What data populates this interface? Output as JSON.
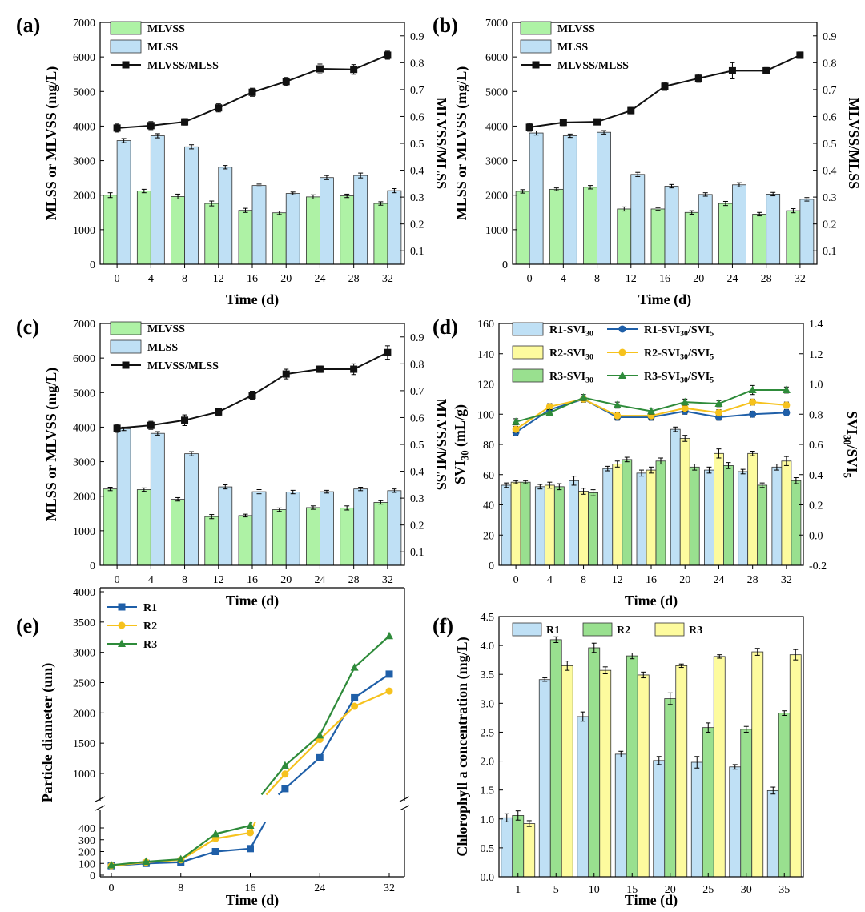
{
  "colors": {
    "mlvss": "#aef2a5",
    "mlss": "#bfe0f5",
    "ratio": "#111111",
    "r1": "#1f5fa8",
    "r2": "#f6c21d",
    "r3": "#2e8b3a",
    "r1_bar": "#bfe0f5",
    "r2_bar": "#fdfb9e",
    "r3_bar": "#99e08f",
    "edge": "#333333"
  },
  "chart_data": [
    {
      "panel_label": "(a)",
      "type": "bar",
      "categories": [
        "0",
        "4",
        "8",
        "12",
        "16",
        "20",
        "24",
        "28",
        "32"
      ],
      "xlabel": "Time (d)",
      "ylabel": "MLSS or MLVSS (mg/L)",
      "ylabel2": "MLVSS/MLSS",
      "ylim": [
        0,
        7000
      ],
      "y_ticks": [
        "0",
        "1000",
        "2000",
        "3000",
        "4000",
        "5000",
        "6000",
        "7000"
      ],
      "ylim2": [
        0.05,
        0.95
      ],
      "y2_ticks": [
        "0.1",
        "0.2",
        "0.3",
        "0.4",
        "0.5",
        "0.6",
        "0.7",
        "0.8",
        "0.9"
      ],
      "legend_position": "top-left",
      "series": [
        {
          "name": "MLVSS",
          "kind": "bar",
          "color": "mlvss",
          "values": [
            2000,
            2120,
            1960,
            1760,
            1560,
            1490,
            1950,
            1980,
            1760
          ],
          "err": [
            70,
            50,
            70,
            70,
            60,
            50,
            60,
            50,
            50
          ]
        },
        {
          "name": "MLSS",
          "kind": "bar",
          "color": "mlss",
          "values": [
            3580,
            3720,
            3400,
            2810,
            2280,
            2050,
            2510,
            2570,
            2130
          ],
          "err": [
            60,
            60,
            60,
            50,
            40,
            40,
            60,
            70,
            60
          ]
        },
        {
          "name": "MLVSS/MLSS",
          "kind": "line",
          "axis": "right",
          "marker": "square",
          "color": "ratio",
          "values": [
            0.557,
            0.566,
            0.58,
            0.632,
            0.69,
            0.73,
            0.777,
            0.775,
            0.828
          ],
          "err": [
            0.015,
            0.015,
            0.012,
            0.015,
            0.015,
            0.015,
            0.018,
            0.018,
            0.015
          ]
        }
      ]
    },
    {
      "panel_label": "(b)",
      "type": "bar",
      "categories": [
        "0",
        "4",
        "8",
        "12",
        "16",
        "20",
        "24",
        "28",
        "32"
      ],
      "xlabel": "Time (d)",
      "ylabel": "MLSS or MLVSS (mg/L)",
      "ylabel2": "MLVSS/MLSS",
      "ylim": [
        0,
        7000
      ],
      "y_ticks": [
        "0",
        "1000",
        "2000",
        "3000",
        "4000",
        "5000",
        "6000",
        "7000"
      ],
      "ylim2": [
        0.05,
        0.95
      ],
      "y2_ticks": [
        "0.1",
        "0.2",
        "0.3",
        "0.4",
        "0.5",
        "0.6",
        "0.7",
        "0.8",
        "0.9"
      ],
      "legend_position": "top-left",
      "series": [
        {
          "name": "MLVSS",
          "kind": "bar",
          "color": "mlvss",
          "values": [
            2110,
            2170,
            2230,
            1600,
            1600,
            1500,
            1760,
            1450,
            1550
          ],
          "err": [
            50,
            40,
            50,
            60,
            40,
            50,
            60,
            50,
            60
          ]
        },
        {
          "name": "MLSS",
          "kind": "bar",
          "color": "mlss",
          "values": [
            3800,
            3720,
            3820,
            2600,
            2260,
            2020,
            2300,
            2030,
            1880
          ],
          "err": [
            60,
            50,
            50,
            60,
            50,
            50,
            60,
            50,
            50
          ]
        },
        {
          "name": "MLVSS/MLSS",
          "kind": "line",
          "axis": "right",
          "marker": "square",
          "color": "ratio",
          "values": [
            0.56,
            0.578,
            0.58,
            0.622,
            0.712,
            0.742,
            0.77,
            0.77,
            0.828
          ],
          "err": [
            0.015,
            0.012,
            0.01,
            0.012,
            0.015,
            0.015,
            0.03,
            0.012,
            0.012
          ]
        }
      ]
    },
    {
      "panel_label": "(c)",
      "type": "bar",
      "categories": [
        "0",
        "4",
        "8",
        "12",
        "16",
        "20",
        "24",
        "28",
        "32"
      ],
      "xlabel": "Time (d)",
      "ylabel": "MLSS or MLVSS (mg/L)",
      "ylabel2": "MLVSS/MLSS",
      "ylim": [
        0,
        7000
      ],
      "y_ticks": [
        "0",
        "1000",
        "2000",
        "3000",
        "4000",
        "5000",
        "6000",
        "7000"
      ],
      "ylim2": [
        0.05,
        0.95
      ],
      "y2_ticks": [
        "0.1",
        "0.2",
        "0.3",
        "0.4",
        "0.5",
        "0.6",
        "0.7",
        "0.8",
        "0.9"
      ],
      "legend_position": "top-left",
      "series": [
        {
          "name": "MLVSS",
          "kind": "bar",
          "color": "mlvss",
          "values": [
            2210,
            2190,
            1910,
            1410,
            1440,
            1610,
            1670,
            1660,
            1820
          ],
          "err": [
            50,
            50,
            50,
            60,
            40,
            50,
            50,
            60,
            50
          ]
        },
        {
          "name": "MLSS",
          "kind": "bar",
          "color": "mlss",
          "values": [
            3950,
            3820,
            3230,
            2270,
            2130,
            2120,
            2130,
            2210,
            2160
          ],
          "err": [
            50,
            50,
            60,
            60,
            60,
            50,
            40,
            50,
            50
          ]
        },
        {
          "name": "MLVSS/MLSS",
          "kind": "line",
          "axis": "right",
          "marker": "square",
          "color": "ratio",
          "values": [
            0.56,
            0.571,
            0.59,
            0.621,
            0.683,
            0.762,
            0.78,
            0.78,
            0.842
          ],
          "err": [
            0.015,
            0.015,
            0.02,
            0.012,
            0.015,
            0.018,
            0.012,
            0.02,
            0.025
          ]
        }
      ]
    },
    {
      "panel_label": "(d)",
      "type": "bar",
      "categories": [
        "0",
        "4",
        "8",
        "12",
        "16",
        "20",
        "24",
        "28",
        "32"
      ],
      "xlabel": "Time (d)",
      "ylabel": "SVI30 (mL/g)",
      "ylabel2": "SVI30/SVI5",
      "ylim": [
        0,
        160
      ],
      "y_ticks": [
        "0",
        "20",
        "40",
        "60",
        "80",
        "100",
        "120",
        "140",
        "160"
      ],
      "ylim2": [
        -0.2,
        1.4
      ],
      "y2_ticks": [
        "-0.2",
        "0.0",
        "0.2",
        "0.4",
        "0.6",
        "0.8",
        "1.0",
        "1.2",
        "1.4"
      ],
      "legend_position": "top",
      "series": [
        {
          "name": "R1-SVI30",
          "kind": "bar",
          "color": "r1_bar",
          "values": [
            53,
            52,
            56,
            64,
            61,
            90,
            63,
            62,
            65
          ],
          "err": [
            1.5,
            1.5,
            3,
            1.5,
            2,
            1.5,
            2,
            1.5,
            2
          ]
        },
        {
          "name": "R2-SVI30",
          "kind": "bar",
          "color": "r2_bar",
          "values": [
            55,
            53,
            49,
            67,
            63,
            84,
            74,
            74,
            69
          ],
          "err": [
            1,
            2,
            2,
            2,
            2,
            2,
            3,
            1.5,
            3
          ]
        },
        {
          "name": "R3-SVI30",
          "kind": "bar",
          "color": "r3_bar",
          "values": [
            55,
            52,
            48,
            70,
            69,
            65,
            66,
            53,
            56
          ],
          "err": [
            1,
            2,
            2,
            1.5,
            2,
            2,
            2,
            1.5,
            2
          ]
        },
        {
          "name": "R1-SVI30/SVI5",
          "kind": "line",
          "axis": "right",
          "marker": "circle",
          "color": "r1",
          "values": [
            0.68,
            0.83,
            0.9,
            0.78,
            0.78,
            0.82,
            0.78,
            0.8,
            0.81
          ],
          "err": [
            0.02,
            0.02,
            0.02,
            0.02,
            0.02,
            0.02,
            0.02,
            0.02,
            0.02
          ]
        },
        {
          "name": "R2-SVI30/SVI5",
          "kind": "line",
          "axis": "right",
          "marker": "circle",
          "color": "r2",
          "values": [
            0.7,
            0.85,
            0.9,
            0.79,
            0.79,
            0.84,
            0.81,
            0.88,
            0.86
          ],
          "err": [
            0.02,
            0.02,
            0.02,
            0.02,
            0.02,
            0.02,
            0.02,
            0.02,
            0.02
          ]
        },
        {
          "name": "R3-SVI30/SVI5",
          "kind": "line",
          "axis": "right",
          "marker": "triangle",
          "color": "r3",
          "values": [
            0.75,
            0.81,
            0.91,
            0.86,
            0.82,
            0.88,
            0.87,
            0.96,
            0.96
          ],
          "err": [
            0.02,
            0.02,
            0.02,
            0.02,
            0.02,
            0.02,
            0.02,
            0.03,
            0.02
          ]
        }
      ]
    },
    {
      "panel_label": "(e)",
      "type": "line",
      "x": [
        0,
        4,
        8,
        12,
        16,
        20,
        24,
        28,
        32
      ],
      "x_ticks": [
        "0",
        "8",
        "16",
        "24",
        "32"
      ],
      "xlabel": "Time (d)",
      "ylabel": "Particle diameter (um)",
      "ylim": [
        0,
        4000
      ],
      "y_break": [
        450,
        650
      ],
      "y_ticks_lower": [
        "0",
        "100",
        "200",
        "300",
        "400"
      ],
      "y_ticks_upper": [
        "1000",
        "1500",
        "2000",
        "2500",
        "3000",
        "3500",
        "4000"
      ],
      "legend_position": "top-left",
      "series": [
        {
          "name": "R1",
          "marker": "square",
          "color": "r1",
          "values": [
            80,
            100,
            110,
            200,
            225,
            750,
            1260,
            2250,
            2640
          ]
        },
        {
          "name": "R2",
          "marker": "circle",
          "color": "r2",
          "values": [
            80,
            110,
            130,
            310,
            360,
            990,
            1560,
            2110,
            2360
          ]
        },
        {
          "name": "R3",
          "marker": "triangle",
          "color": "r3",
          "values": [
            85,
            115,
            135,
            350,
            420,
            1130,
            1630,
            2750,
            3270
          ]
        }
      ]
    },
    {
      "panel_label": "(f)",
      "type": "bar",
      "categories": [
        "1",
        "5",
        "10",
        "15",
        "20",
        "25",
        "30",
        "35"
      ],
      "xlabel": "Time (d)",
      "ylabel": "Chlorophyll a concentration (mg/L)",
      "ylim": [
        0,
        4.5
      ],
      "y_ticks": [
        "0.0",
        "0.5",
        "1.0",
        "1.5",
        "2.0",
        "2.5",
        "3.0",
        "3.5",
        "4.0",
        "4.5"
      ],
      "legend_position": "top",
      "series": [
        {
          "name": "R1",
          "color": "r1_bar",
          "values": [
            1.02,
            3.41,
            2.77,
            2.12,
            2.01,
            1.98,
            1.9,
            1.49
          ],
          "err": [
            0.07,
            0.03,
            0.08,
            0.05,
            0.07,
            0.1,
            0.04,
            0.06
          ]
        },
        {
          "name": "R2",
          "color": "r3_bar",
          "values": [
            1.06,
            4.1,
            3.96,
            3.82,
            3.08,
            2.58,
            2.55,
            2.83
          ],
          "err": [
            0.08,
            0.05,
            0.08,
            0.05,
            0.1,
            0.08,
            0.05,
            0.04
          ]
        },
        {
          "name": "R3",
          "color": "r2_bar",
          "values": [
            0.92,
            3.65,
            3.57,
            3.49,
            3.65,
            3.81,
            3.89,
            3.84
          ],
          "err": [
            0.05,
            0.08,
            0.06,
            0.05,
            0.03,
            0.03,
            0.06,
            0.09
          ]
        }
      ]
    }
  ]
}
